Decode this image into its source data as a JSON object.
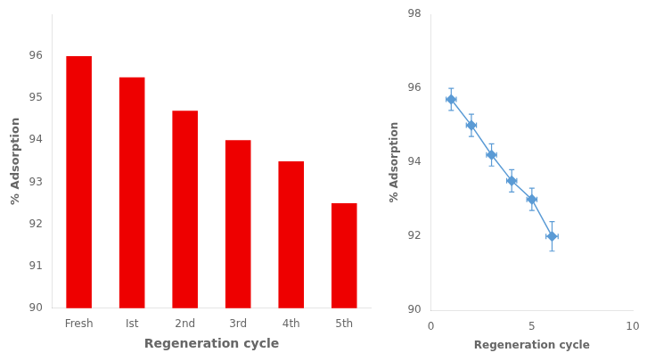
{
  "chart_data": [
    {
      "type": "bar",
      "categories": [
        "Fresh",
        "Ist",
        "2nd",
        "3rd",
        "4th",
        "5th"
      ],
      "values": [
        96.0,
        95.5,
        94.7,
        94.0,
        93.5,
        92.5
      ],
      "color": "#ee0000",
      "xlabel": "Regeneration cycle",
      "ylabel": "% Adsorption",
      "ylim": [
        90,
        97
      ],
      "yticks": [
        90,
        91,
        92,
        93,
        94,
        95,
        96
      ],
      "grid": false
    },
    {
      "type": "line",
      "x": [
        1,
        2,
        3,
        4,
        5,
        6
      ],
      "values": [
        95.7,
        95.0,
        94.2,
        93.5,
        93.0,
        92.0
      ],
      "yerr": [
        0.3,
        0.3,
        0.3,
        0.3,
        0.3,
        0.4
      ],
      "xerr": [
        0.25,
        0.25,
        0.25,
        0.25,
        0.25,
        0.3
      ],
      "color": "#5b9bd5",
      "marker": "diamond",
      "xlabel": "Regeneration cycle",
      "ylabel": "% Adsorption",
      "xlim": [
        0,
        10
      ],
      "ylim": [
        90,
        98
      ],
      "xticks": [
        0,
        5,
        10
      ],
      "yticks": [
        90,
        92,
        94,
        96,
        98
      ],
      "grid": false
    }
  ]
}
